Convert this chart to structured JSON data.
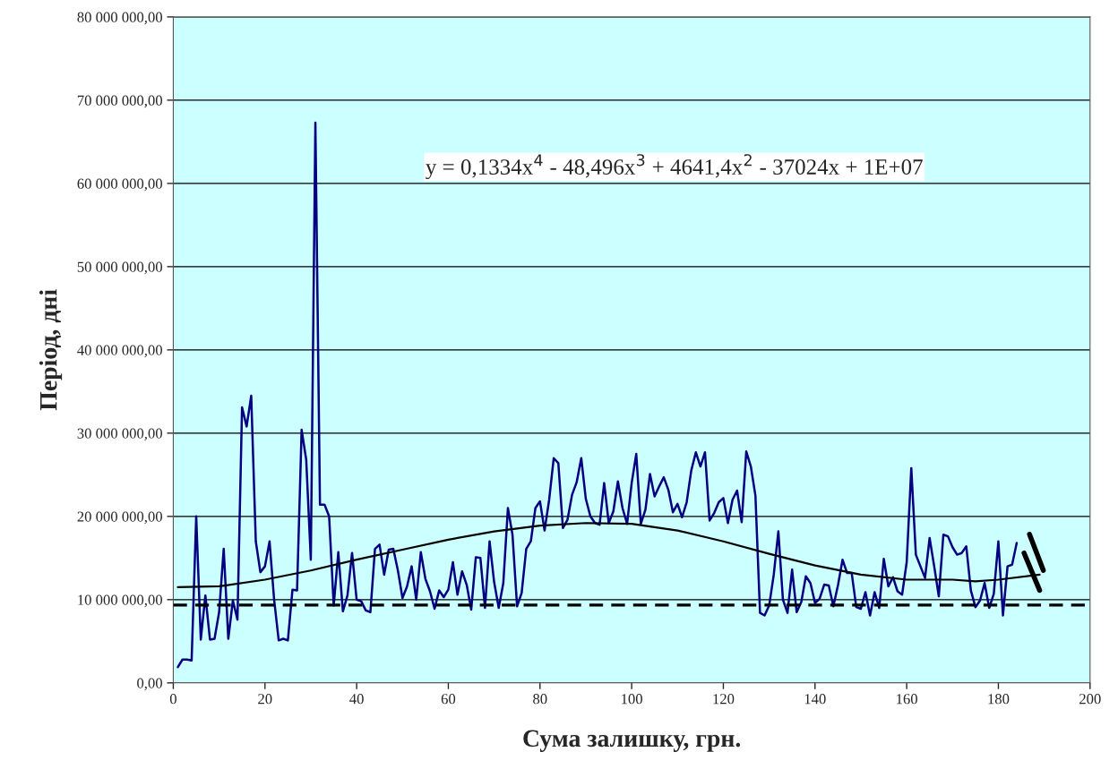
{
  "chart_data": {
    "type": "line",
    "xlabel": "Сума залишку, грн.",
    "ylabel": "Період, дні",
    "xlim": [
      0,
      200
    ],
    "xticks": [
      0,
      20,
      40,
      60,
      80,
      100,
      120,
      140,
      160,
      180,
      200
    ],
    "ylim": [
      0,
      80000000
    ],
    "yticks": [
      {
        "value": 0,
        "label": "0,00"
      },
      {
        "value": 10000000,
        "label": "10 000 000,00"
      },
      {
        "value": 20000000,
        "label": "20 000 000,00"
      },
      {
        "value": 30000000,
        "label": "30 000 000,00"
      },
      {
        "value": 40000000,
        "label": "40 000 000,00"
      },
      {
        "value": 50000000,
        "label": "50 000 000,00"
      },
      {
        "value": 60000000,
        "label": "60 000 000,00"
      },
      {
        "value": 70000000,
        "label": "70 000 000,00"
      },
      {
        "value": 80000000,
        "label": "80 000 000,00"
      }
    ],
    "grid": "y",
    "marker": "none",
    "annotations": [
      "y = 0,1334x$^{4}$ - 48,496x$^{3}$ + 4641,4x$^{2}$ - 37024x + 1E+07"
    ],
    "ref_lines": [
      {
        "axis": "y",
        "value": 9350000,
        "color": "#000000",
        "line_style": "dashed"
      }
    ],
    "series": [
      {
        "color": "#000080",
        "line_style": "solid",
        "x": [
          1,
          2,
          3,
          4,
          5,
          6,
          7,
          8,
          9,
          10,
          11,
          12,
          13,
          14,
          15,
          16,
          17,
          18,
          19,
          20,
          21,
          22,
          23,
          24,
          25,
          26,
          27,
          28,
          29,
          30,
          31,
          32,
          33,
          34,
          35,
          36,
          37,
          38,
          39,
          40,
          41,
          42,
          43,
          44,
          45,
          46,
          47,
          48,
          49,
          50,
          51,
          52,
          53,
          54,
          55,
          56,
          57,
          58,
          59,
          60,
          61,
          62,
          63,
          64,
          65,
          66,
          67,
          68,
          69,
          70,
          71,
          72,
          73,
          74,
          75,
          76,
          77,
          78,
          79,
          80,
          81,
          82,
          83,
          84,
          85,
          86,
          87,
          88,
          89,
          90,
          91,
          92,
          93,
          94,
          95,
          96,
          97,
          98,
          99,
          100,
          101,
          102,
          103,
          104,
          105,
          106,
          107,
          108,
          109,
          110,
          111,
          112,
          113,
          114,
          115,
          116,
          117,
          118,
          119,
          120,
          121,
          122,
          123,
          124,
          125,
          126,
          127,
          128,
          129,
          130,
          131,
          132,
          133,
          134,
          135,
          136,
          137,
          138,
          139,
          140,
          141,
          142,
          143,
          144,
          145,
          146,
          147,
          148,
          149,
          150,
          151,
          152,
          153,
          154,
          155,
          156,
          157,
          158,
          159,
          160,
          161,
          162,
          163,
          164,
          165,
          166,
          167,
          168,
          169,
          170,
          171,
          172,
          173,
          174,
          175,
          176,
          177,
          178,
          179,
          180,
          181,
          182,
          183,
          184
        ],
        "values": [
          1900000.0,
          2800000.0,
          2800000.0,
          2700000.0,
          20000000.0,
          5200000.0,
          10500000.0,
          5200000.0,
          5300000.0,
          8500000.0,
          16100000.0,
          5300000.0,
          9900000.0,
          7600000.0,
          33100000.0,
          30800000.0,
          34500000.0,
          17000000.0,
          13300000.0,
          14000000.0,
          17000000.0,
          10000000.0,
          5100000.0,
          5300000.0,
          5100000.0,
          11200000.0,
          11100000.0,
          30400000.0,
          26800000.0,
          14800000.0,
          67300000.0,
          21400000.0,
          21400000.0,
          20000000.0,
          9300000.0,
          15700000.0,
          8600000.0,
          10500000.0,
          15600000.0,
          10000000.0,
          9800000.0,
          8700000.0,
          8500000.0,
          16100000.0,
          16600000.0,
          13000000.0,
          16000000.0,
          16100000.0,
          13500000.0,
          10200000.0,
          11600000.0,
          14000000.0,
          10000000.0,
          15700000.0,
          12500000.0,
          11000000.0,
          8900000.0,
          11100000.0,
          10300000.0,
          11200000.0,
          14500000.0,
          10600000.0,
          13400000.0,
          11800000.0,
          8800000.0,
          15100000.0,
          15000000.0,
          9000000.0,
          17000000.0,
          12100000.0,
          9000000.0,
          12000000.0,
          21000000.0,
          17800000.0,
          9200000.0,
          10800000.0,
          16100000.0,
          17000000.0,
          21000000.0,
          21800000.0,
          18300000.0,
          22000000.0,
          27000000.0,
          26400000.0,
          18600000.0,
          19600000.0,
          22600000.0,
          24100000.0,
          27000000.0,
          22100000.0,
          20000000.0,
          19200000.0,
          19000000.0,
          24000000.0,
          19200000.0,
          20600000.0,
          24200000.0,
          21000000.0,
          19100000.0,
          24000000.0,
          27500000.0,
          19100000.0,
          20800000.0,
          25100000.0,
          22400000.0,
          23600000.0,
          24700000.0,
          23200000.0,
          20500000.0,
          21500000.0,
          19900000.0,
          21700000.0,
          25500000.0,
          27700000.0,
          26000000.0,
          27700000.0,
          19500000.0,
          20400000.0,
          21700000.0,
          22200000.0,
          19200000.0,
          22000000.0,
          23100000.0,
          19300000.0,
          27800000.0,
          26000000.0,
          22500000.0,
          8400000.0,
          8100000.0,
          9300000.0,
          13000000.0,
          18200000.0,
          10000000.0,
          8400000.0,
          13600000.0,
          8500000.0,
          9700000.0,
          12800000.0,
          12000000.0,
          9600000.0,
          10100000.0,
          11800000.0,
          11700000.0,
          9200000.0,
          11700000.0,
          14800000.0,
          13200000.0,
          13200000.0,
          9100000.0,
          8900000.0,
          10900000.0,
          8100000.0,
          10900000.0,
          9000000.0,
          14900000.0,
          11600000.0,
          12700000.0,
          11000000.0,
          10600000.0,
          14500000.0,
          25800000.0,
          15400000.0,
          14000000.0,
          12600000.0,
          17400000.0,
          14000000.0,
          10400000.0,
          17800000.0,
          17600000.0,
          16300000.0,
          15400000.0,
          15600000.0,
          16400000.0,
          11100000.0,
          9100000.0,
          9900000.0,
          12000000.0,
          9000000.0,
          10700000.0,
          17000000.0,
          8100000.0,
          14000000.0,
          14200000.0,
          16800000.0
        ]
      },
      {
        "color": "#000000",
        "line_style": "solid",
        "x": [
          1,
          10,
          20,
          30,
          40,
          50,
          60,
          70,
          80,
          90,
          100,
          110,
          120,
          130,
          140,
          150,
          160,
          170,
          175,
          180,
          189
        ],
        "values": [
          11500000.0,
          11600000.0,
          12400000.0,
          13500000.0,
          14800000.0,
          16000000.0,
          17200000.0,
          18200000.0,
          18900000.0,
          19200000.0,
          19100000.0,
          18300000.0,
          17000000.0,
          15500000.0,
          14100000.0,
          13000000.0,
          12400000.0,
          12400000.0,
          12200000.0,
          12400000.0,
          13000000.0
        ]
      }
    ]
  }
}
